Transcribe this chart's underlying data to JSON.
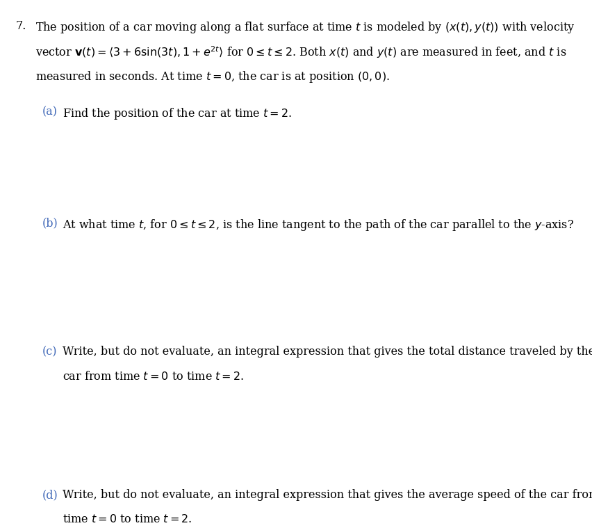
{
  "background_color": "#ffffff",
  "fig_width": 8.53,
  "fig_height": 7.59,
  "text_color_black": "#000000",
  "text_color_blue": "#4169b8",
  "text_color_dark": "#1a1a2e",
  "problem_number": "7.",
  "intro_line1": "The position of a car moving along a flat surface at time $t$ is modeled by $(x(t), y(t))$ with velocity",
  "intro_line2": "vector $\\mathbf{v}(t) = \\langle 3 + 6\\sin(3t), 1 + e^{2t}\\rangle$ for $0 \\leq t \\leq 2$. Both $x(t)$ and $y(t)$ are measured in feet, and $t$ is",
  "intro_line3": "measured in seconds. At time $t = 0$, the car is at position $(0, 0)$.",
  "part_a_label": "(a)",
  "part_a_text": "Find the position of the car at time $t = 2$.",
  "part_b_label": "(b)",
  "part_b_text": "At what time $t$, for $0 \\leq t \\leq 2$, is the line tangent to the path of the car parallel to the $y$-axis?",
  "part_c_label": "(c)",
  "part_c_line1": "Write, but do not evaluate, an integral expression that gives the total distance traveled by the",
  "part_c_line2": "car from time $t = 0$ to time $t = 2$.",
  "part_d_label": "(d)",
  "part_d_line1": "Write, but do not evaluate, an integral expression that gives the average speed of the car from",
  "part_d_line2": "time $t = 0$ to time $t = 2$."
}
